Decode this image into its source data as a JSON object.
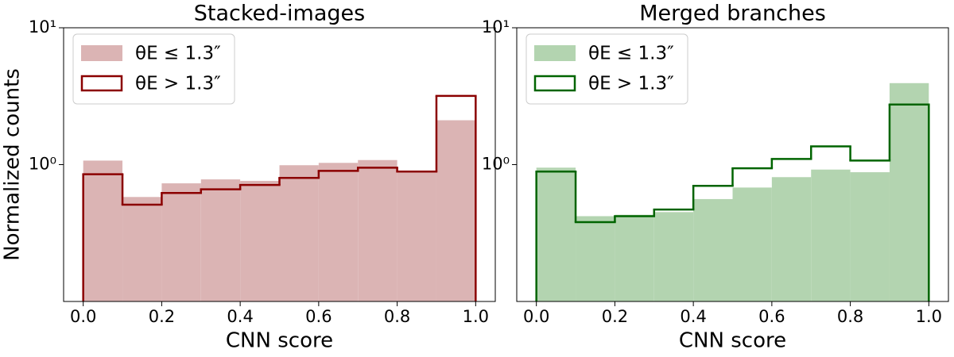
{
  "chart_data": [
    {
      "type": "histogram",
      "title": "Stacked-images",
      "xlabel": "CNN score",
      "ylabel": "Normalized counts",
      "bins": [
        0,
        0.1,
        0.2,
        0.3,
        0.4,
        0.5,
        0.6,
        0.7,
        0.8,
        0.9,
        1
      ],
      "series": [
        {
          "name": "θE ≤ 1.3″",
          "style": "filled",
          "color": "#dbb4b4",
          "values": [
            1.07,
            0.58,
            0.73,
            0.78,
            0.76,
            0.99,
            1.03,
            1.08,
            0.9,
            2.11
          ]
        },
        {
          "name": "θE > 1.3″",
          "style": "step",
          "color": "#8b0000",
          "values": [
            0.85,
            0.51,
            0.62,
            0.66,
            0.71,
            0.8,
            0.9,
            0.95,
            0.89,
            3.18
          ]
        }
      ],
      "xlim": [
        -0.05,
        1.05
      ],
      "xticks": [
        {
          "value": 0,
          "label": "0.0"
        },
        0.2,
        0.4,
        0.6,
        0.8,
        {
          "value": 1,
          "label": "1.0"
        }
      ],
      "ylim": [
        0.1,
        10
      ],
      "yscale": "log",
      "yticks": [
        {
          "value": 1,
          "label": "10⁰"
        },
        {
          "value": 10,
          "label": "10¹"
        }
      ],
      "legend": "upper left"
    },
    {
      "type": "histogram",
      "title": "Merged branches",
      "xlabel": "CNN score",
      "bins": [
        0,
        0.1,
        0.2,
        0.3,
        0.4,
        0.5,
        0.6,
        0.7,
        0.8,
        0.9,
        1
      ],
      "series": [
        {
          "name": "θE ≤ 1.3″",
          "style": "filled",
          "color": "#b3d4b0",
          "values": [
            0.95,
            0.42,
            0.43,
            0.45,
            0.56,
            0.68,
            0.81,
            0.92,
            0.88,
            3.94
          ]
        },
        {
          "name": "θE > 1.3″",
          "style": "step",
          "color": "#006400",
          "values": [
            0.89,
            0.38,
            0.42,
            0.47,
            0.7,
            0.94,
            1.1,
            1.36,
            1.07,
            2.75
          ]
        }
      ],
      "xlim": [
        -0.05,
        1.05
      ],
      "xticks": [
        {
          "value": 0,
          "label": "0.0"
        },
        0.2,
        0.4,
        0.6,
        0.8,
        {
          "value": 1,
          "label": "1.0"
        }
      ],
      "ylim": [
        0.1,
        10
      ],
      "yscale": "log",
      "yticks": [
        {
          "value": 1,
          "label": "10⁰"
        },
        {
          "value": 10,
          "label": "10¹"
        }
      ],
      "legend": "upper left"
    }
  ]
}
